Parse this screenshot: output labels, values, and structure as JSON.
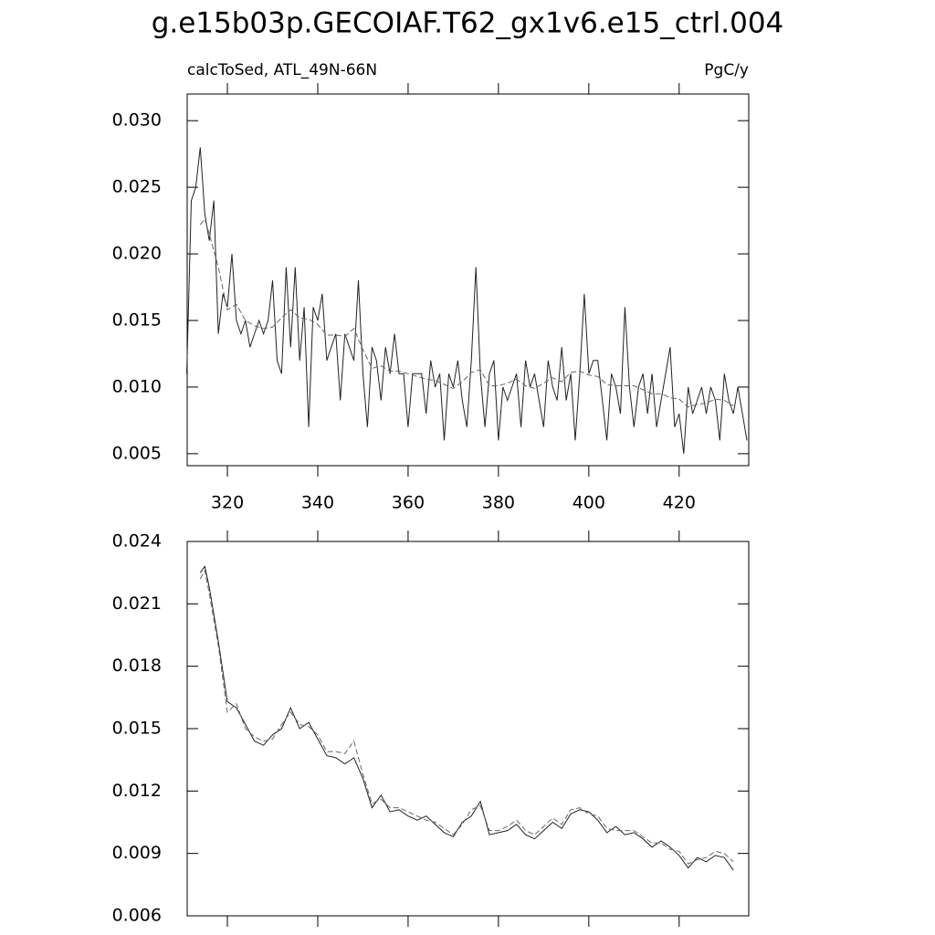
{
  "chart_data": [
    {
      "type": "line",
      "title": "g.e15b03p.GECOIAF.T62_gx1v6.e15_ctrl.004",
      "subtitle_left": "calcToSed, ATL_49N-66N",
      "subtitle_right": "PgC/y",
      "xlim": [
        311.1,
        435.4
      ],
      "xticks": [
        320,
        340,
        360,
        380,
        400,
        420
      ],
      "ylim": [
        0.0041,
        0.032
      ],
      "yticks": [
        0.005,
        {
          "value": 0.01,
          "label": "0.010"
        },
        0.015,
        {
          "value": 0.02,
          "label": "0.020"
        },
        0.025,
        {
          "value": 0.03,
          "label": "0.030"
        }
      ],
      "series": [
        {
          "color": "#222222",
          "style": "solid",
          "x": [
            311,
            312,
            313,
            314,
            315,
            316,
            317,
            318,
            319,
            320,
            321,
            322,
            323,
            324,
            325,
            326,
            327,
            328,
            329,
            330,
            331,
            332,
            333,
            334,
            335,
            336,
            337,
            338,
            339,
            340,
            341,
            342,
            343,
            344,
            345,
            346,
            347,
            348,
            349,
            350,
            351,
            352,
            353,
            354,
            355,
            356,
            357,
            358,
            359,
            360,
            361,
            362,
            363,
            364,
            365,
            366,
            367,
            368,
            369,
            370,
            371,
            372,
            373,
            374,
            375,
            376,
            377,
            378,
            379,
            380,
            381,
            382,
            383,
            384,
            385,
            386,
            387,
            388,
            389,
            390,
            391,
            392,
            393,
            394,
            395,
            396,
            397,
            398,
            399,
            400,
            401,
            402,
            403,
            404,
            405,
            406,
            407,
            408,
            409,
            410,
            411,
            412,
            413,
            414,
            415,
            416,
            417,
            418,
            419,
            420,
            421,
            422,
            423,
            424,
            425,
            426,
            427,
            428,
            429,
            430,
            431,
            432,
            433,
            434,
            435
          ],
          "values": [
            0.011,
            0.024,
            0.025,
            0.028,
            0.023,
            0.021,
            0.024,
            0.014,
            0.017,
            0.016,
            0.02,
            0.015,
            0.014,
            0.015,
            0.013,
            0.014,
            0.015,
            0.014,
            0.015,
            0.018,
            0.012,
            0.011,
            0.019,
            0.013,
            0.019,
            0.012,
            0.016,
            0.007,
            0.016,
            0.015,
            0.017,
            0.012,
            0.013,
            0.014,
            0.009,
            0.014,
            0.013,
            0.012,
            0.018,
            0.011,
            0.007,
            0.013,
            0.012,
            0.009,
            0.013,
            0.011,
            0.014,
            0.011,
            0.011,
            0.007,
            0.011,
            0.011,
            0.011,
            0.008,
            0.012,
            0.01,
            0.011,
            0.006,
            0.011,
            0.01,
            0.012,
            0.009,
            0.007,
            0.012,
            0.019,
            0.011,
            0.007,
            0.011,
            0.012,
            0.006,
            0.01,
            0.009,
            0.01,
            0.011,
            0.007,
            0.012,
            0.01,
            0.011,
            0.009,
            0.007,
            0.012,
            0.01,
            0.009,
            0.013,
            0.009,
            0.011,
            0.006,
            0.011,
            0.017,
            0.011,
            0.012,
            0.012,
            0.009,
            0.006,
            0.011,
            0.01,
            0.008,
            0.016,
            0.01,
            0.007,
            0.01,
            0.011,
            0.008,
            0.011,
            0.007,
            0.009,
            0.011,
            0.013,
            0.007,
            0.008,
            0.005,
            0.01,
            0.008,
            0.009,
            0.01,
            0.008,
            0.01,
            0.009,
            0.006,
            0.011,
            0.009,
            0.008,
            0.01,
            0.008,
            0.006
          ]
        },
        {
          "color": "#666666",
          "style": "dashed",
          "x": [
            314,
            315,
            316,
            318,
            320,
            322,
            324,
            326,
            328,
            330,
            332,
            334,
            336,
            338,
            340,
            342,
            344,
            346,
            348,
            350,
            352,
            354,
            356,
            358,
            360,
            362,
            364,
            366,
            368,
            370,
            372,
            374,
            376,
            378,
            380,
            382,
            384,
            386,
            388,
            390,
            392,
            394,
            396,
            398,
            400,
            402,
            404,
            406,
            408,
            410,
            412,
            414,
            416,
            418,
            420,
            422,
            424,
            426,
            428,
            430,
            432
          ],
          "values": [
            0.0222,
            0.0226,
            0.0215,
            0.019,
            0.0158,
            0.0162,
            0.015,
            0.0146,
            0.0144,
            0.0145,
            0.0152,
            0.0158,
            0.0152,
            0.0151,
            0.0147,
            0.0139,
            0.0139,
            0.0138,
            0.0144,
            0.0128,
            0.0114,
            0.0116,
            0.0112,
            0.0112,
            0.011,
            0.0108,
            0.0106,
            0.0105,
            0.0102,
            0.0099,
            0.0104,
            0.0111,
            0.0113,
            0.0101,
            0.0101,
            0.0103,
            0.0106,
            0.0101,
            0.0099,
            0.0103,
            0.0107,
            0.0104,
            0.0111,
            0.0112,
            0.0109,
            0.0108,
            0.0102,
            0.0101,
            0.0101,
            0.0101,
            0.0098,
            0.0095,
            0.0095,
            0.0092,
            0.0091,
            0.0085,
            0.0087,
            0.0088,
            0.0091,
            0.009,
            0.0086
          ]
        }
      ]
    },
    {
      "type": "line",
      "xlim": [
        311.1,
        435.4
      ],
      "xticks": [
        320,
        340,
        360,
        380,
        400,
        420
      ],
      "ylim": [
        0.006,
        0.024
      ],
      "yticks": [
        0.006,
        0.009,
        0.012,
        0.015,
        0.018,
        0.021,
        0.024
      ],
      "series": [
        {
          "color": "#222222",
          "style": "solid",
          "x": [
            314,
            315,
            316,
            318,
            320,
            322,
            324,
            326,
            328,
            330,
            332,
            334,
            336,
            338,
            340,
            342,
            344,
            346,
            348,
            350,
            352,
            354,
            356,
            358,
            360,
            362,
            364,
            366,
            368,
            370,
            372,
            374,
            376,
            378,
            380,
            382,
            384,
            386,
            388,
            390,
            392,
            394,
            396,
            398,
            400,
            402,
            404,
            406,
            408,
            410,
            412,
            414,
            416,
            418,
            420,
            422,
            424,
            426,
            428,
            430,
            432
          ],
          "values": [
            0.0225,
            0.0228,
            0.0218,
            0.0192,
            0.0163,
            0.016,
            0.0152,
            0.0144,
            0.0142,
            0.0147,
            0.015,
            0.016,
            0.015,
            0.0153,
            0.0145,
            0.0137,
            0.0136,
            0.0133,
            0.0136,
            0.0126,
            0.0112,
            0.0118,
            0.011,
            0.0111,
            0.0108,
            0.0106,
            0.0108,
            0.0104,
            0.01,
            0.0098,
            0.0105,
            0.0108,
            0.0115,
            0.0099,
            0.01,
            0.0101,
            0.0104,
            0.0099,
            0.0097,
            0.0101,
            0.0105,
            0.0102,
            0.0109,
            0.0111,
            0.011,
            0.0106,
            0.01,
            0.0103,
            0.0099,
            0.01,
            0.0097,
            0.0093,
            0.0096,
            0.0093,
            0.0089,
            0.0083,
            0.0088,
            0.0086,
            0.0089,
            0.0088,
            0.0082
          ]
        },
        {
          "color": "#666666",
          "style": "dashed",
          "x": [
            314,
            315,
            316,
            318,
            320,
            322,
            324,
            326,
            328,
            330,
            332,
            334,
            336,
            338,
            340,
            342,
            344,
            346,
            348,
            350,
            352,
            354,
            356,
            358,
            360,
            362,
            364,
            366,
            368,
            370,
            372,
            374,
            376,
            378,
            380,
            382,
            384,
            386,
            388,
            390,
            392,
            394,
            396,
            398,
            400,
            402,
            404,
            406,
            408,
            410,
            412,
            414,
            416,
            418,
            420,
            422,
            424,
            426,
            428,
            430,
            432
          ],
          "values": [
            0.0222,
            0.0226,
            0.0215,
            0.019,
            0.0158,
            0.0162,
            0.015,
            0.0146,
            0.0144,
            0.0145,
            0.0152,
            0.0158,
            0.0152,
            0.0151,
            0.0147,
            0.0139,
            0.0139,
            0.0138,
            0.0144,
            0.0128,
            0.0114,
            0.0116,
            0.0112,
            0.0112,
            0.011,
            0.0108,
            0.0106,
            0.0105,
            0.0102,
            0.0099,
            0.0104,
            0.0111,
            0.0113,
            0.0101,
            0.0101,
            0.0103,
            0.0106,
            0.0101,
            0.0099,
            0.0103,
            0.0107,
            0.0104,
            0.0111,
            0.0112,
            0.0109,
            0.0108,
            0.0102,
            0.0101,
            0.0101,
            0.0101,
            0.0098,
            0.0095,
            0.0095,
            0.0092,
            0.0091,
            0.0085,
            0.0087,
            0.0088,
            0.0091,
            0.009,
            0.0086
          ]
        }
      ]
    }
  ]
}
